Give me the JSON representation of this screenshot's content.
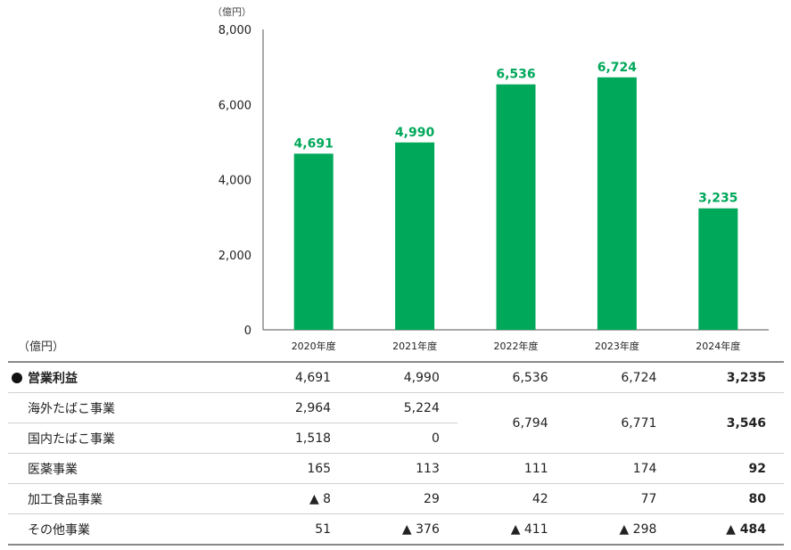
{
  "chart_data": {
    "type": "bar",
    "unit": "（億円）",
    "categories": [
      "2020年度",
      "2021年度",
      "2022年度",
      "2023年度",
      "2024年度"
    ],
    "values": [
      4691,
      4990,
      6536,
      6724,
      3235
    ],
    "value_labels": [
      "4,691",
      "4,990",
      "6,536",
      "6,724",
      "3,235"
    ],
    "ylim": [
      0,
      8000
    ],
    "yticks": [
      0,
      2000,
      4000,
      6000,
      8000
    ],
    "ytick_labels": [
      "0",
      "2,000",
      "4,000",
      "6,000",
      "8,000"
    ],
    "grid": false,
    "bar_color": "#00a85a",
    "label_color": "#00a85a"
  },
  "table": {
    "unit": "（億円）",
    "rows": [
      {
        "label": "営業利益",
        "values": [
          "4,691",
          "4,990",
          "6,536",
          "6,724",
          "3,235"
        ]
      },
      {
        "label": "海外たばこ事業",
        "values": [
          "2,964",
          "5,224"
        ]
      },
      {
        "label": "国内たばこ事業",
        "values": [
          "1,518",
          "0"
        ]
      },
      {
        "label": "医薬事業",
        "values": [
          "165",
          "113",
          "111",
          "174",
          "92"
        ]
      },
      {
        "label": "加工食品事業",
        "values": [
          "▲ 8",
          "29",
          "42",
          "77",
          "80"
        ]
      },
      {
        "label": "その他事業",
        "values": [
          "51",
          "▲ 376",
          "▲ 411",
          "▲ 298",
          "▲ 484"
        ]
      }
    ],
    "tobacco_combined": [
      "6,794",
      "6,771",
      "3,546"
    ]
  }
}
